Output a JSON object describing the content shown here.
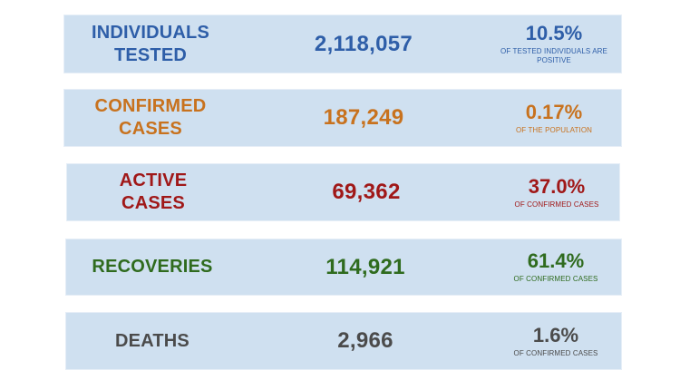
{
  "rows": [
    {
      "label_lines": [
        "INDIVIDUALS",
        "TESTED"
      ],
      "value": "2,118,057",
      "percent": "10.5%",
      "note_lines": [
        "OF TESTED INDIVIDUALS ARE",
        "POSITIVE"
      ],
      "color": "#2e5ea8"
    },
    {
      "label_lines": [
        "CONFIRMED",
        "CASES"
      ],
      "value": "187,249",
      "percent": "0.17%",
      "note_lines": [
        "OF THE POPULATION"
      ],
      "color": "#c8721e"
    },
    {
      "label_lines": [
        "ACTIVE",
        "CASES"
      ],
      "value": "69,362",
      "percent": "37.0%",
      "note_lines": [
        "OF CONFIRMED CASES"
      ],
      "color": "#a01818"
    },
    {
      "label_lines": [
        "RECOVERIES"
      ],
      "value": "114,921",
      "percent": "61.4%",
      "note_lines": [
        "OF CONFIRMED CASES"
      ],
      "color": "#2f6b1e"
    },
    {
      "label_lines": [
        "DEATHS"
      ],
      "value": "2,966",
      "percent": "1.6%",
      "note_lines": [
        "OF CONFIRMED CASES"
      ],
      "color": "#4b4b4b"
    }
  ]
}
